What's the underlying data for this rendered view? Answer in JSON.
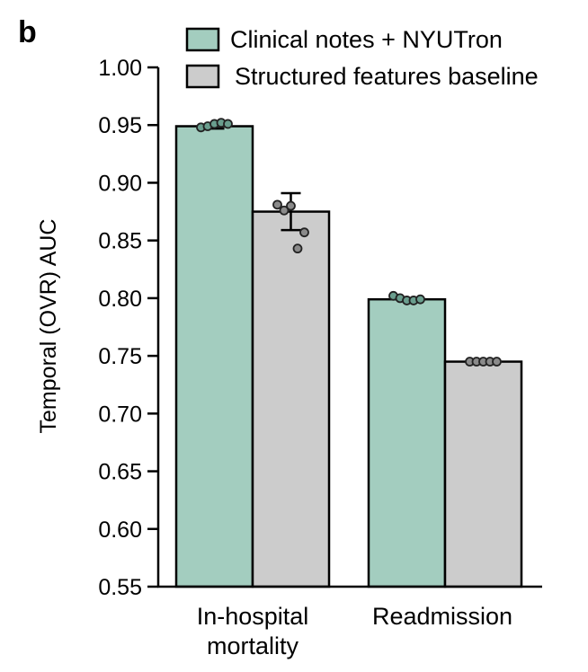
{
  "panel_label": "b",
  "colors": {
    "nyutron": "#a3cdbf",
    "baseline": "#cccccc",
    "stroke": "#000000",
    "point_nyutron": "#6a9e8e",
    "point_baseline": "#8a8a8a"
  },
  "chart_data": {
    "type": "bar",
    "title": "",
    "xlabel": "",
    "ylabel": "Temporal (OVR) AUC",
    "ylim": [
      0.55,
      1.0
    ],
    "yticks": [
      "0.55",
      "0.60",
      "0.65",
      "0.70",
      "0.75",
      "0.80",
      "0.85",
      "0.90",
      "0.95",
      "1.00"
    ],
    "categories": [
      "In-hospital mortality",
      "Readmission"
    ],
    "category_lines": [
      [
        "In-hospital",
        "mortality"
      ],
      [
        "Readmission"
      ]
    ],
    "legend_position": "top",
    "series": [
      {
        "name": "Clinical notes + NYUTron",
        "color_key": "nyutron",
        "values": [
          0.949,
          0.799
        ],
        "errors": [
          0.002,
          0.001
        ],
        "points": [
          [
            0.948,
            0.949,
            0.951,
            0.952,
            0.951
          ],
          [
            0.802,
            0.8,
            0.798,
            0.798,
            0.799
          ]
        ]
      },
      {
        "name": "Structured features baseline",
        "color_key": "baseline",
        "values": [
          0.875,
          0.745
        ],
        "errors": [
          0.016,
          0.001
        ],
        "points": [
          [
            0.881,
            0.876,
            0.88,
            0.843,
            0.857
          ],
          [
            0.745,
            0.745,
            0.745,
            0.745,
            0.745
          ]
        ]
      }
    ]
  }
}
